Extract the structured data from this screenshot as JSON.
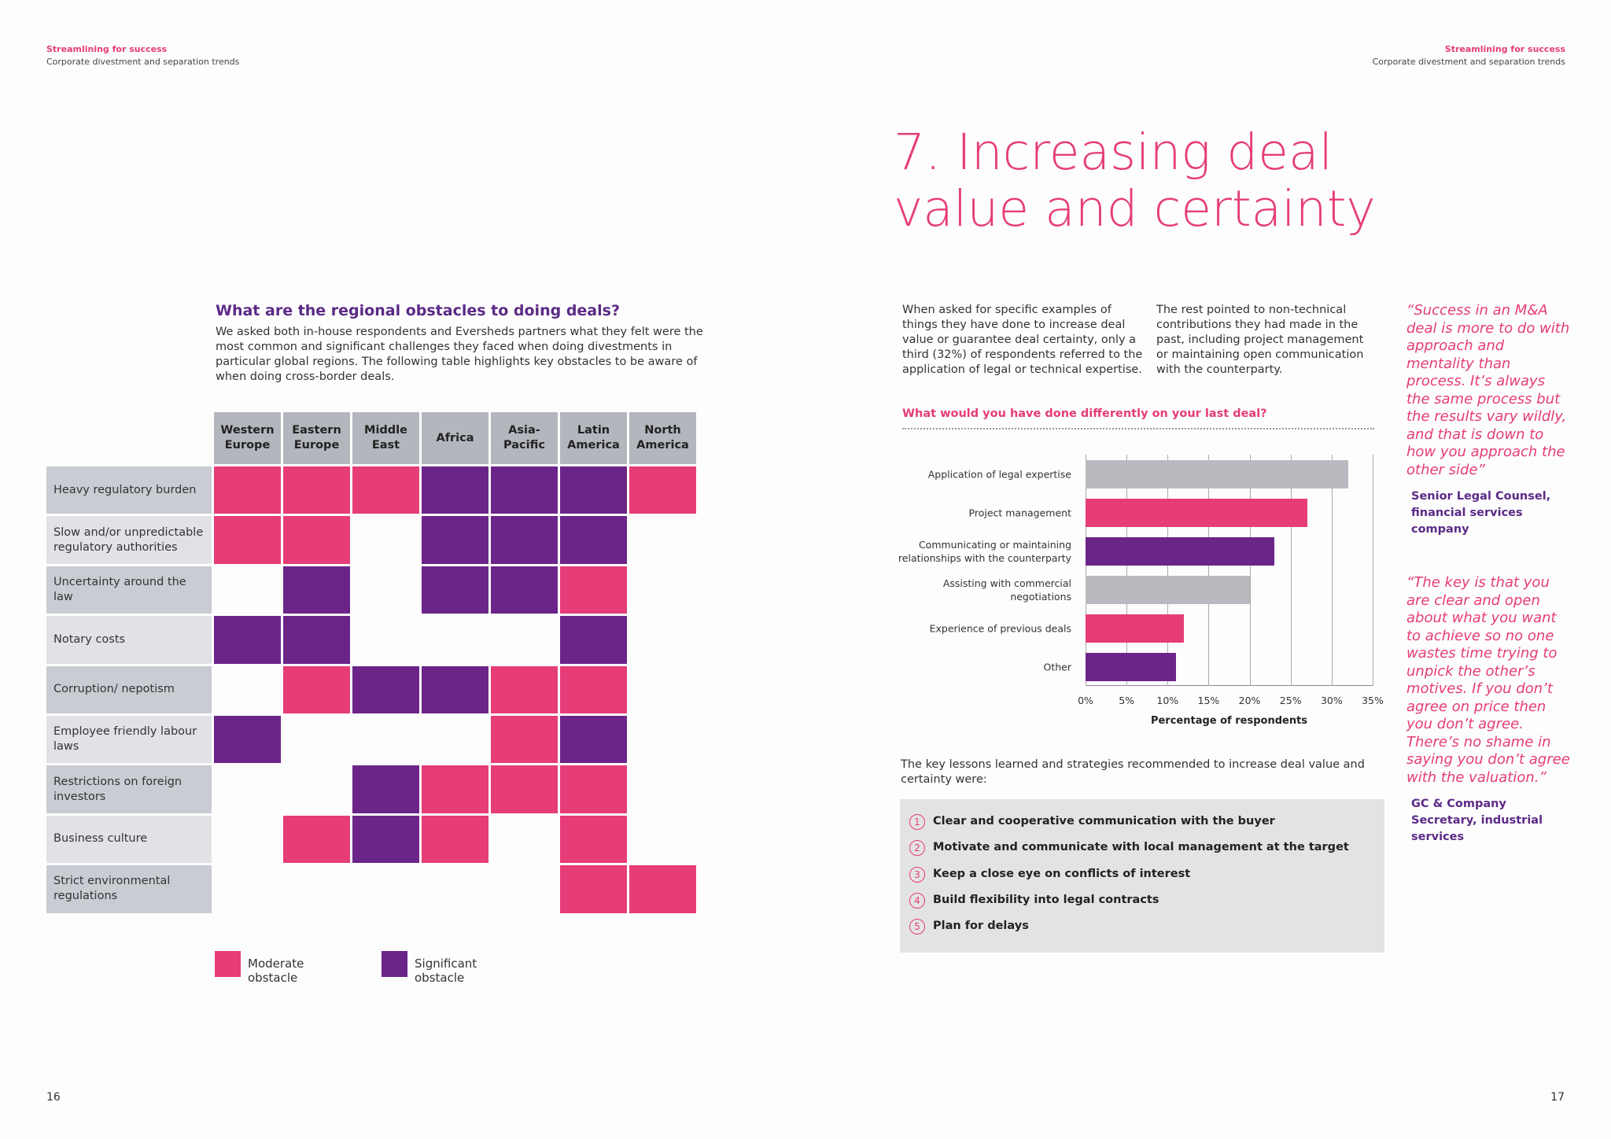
{
  "header_left": {
    "title": "Streamlining for success",
    "subtitle": "Corporate divestment and separation trends"
  },
  "header_right": {
    "title": "Streamlining for success",
    "subtitle": "Corporate divestment and separation trends"
  },
  "page_numbers": [
    "16",
    "17"
  ],
  "obstacles": {
    "heading": "What are the regional obstacles to doing deals?",
    "intro": "We asked both in-house respondents and Eversheds partners what they felt were the most common and significant challenges they faced when doing divestments in particular global regions. The following table highlights key obstacles to be aware of when doing cross-border deals.",
    "columns": [
      "Western Europe",
      "Eastern Europe",
      "Middle East",
      "Africa",
      "Asia-Pacific",
      "Latin America",
      "North America"
    ],
    "legend": [
      {
        "label": "Moderate obstacle",
        "color": "#e63c78"
      },
      {
        "label": "Significant obstacle",
        "color": "#6b2588"
      }
    ],
    "rows": [
      {
        "label": "Heavy regulatory burden",
        "cells": [
          0,
          0,
          0,
          1,
          1,
          1,
          0
        ]
      },
      {
        "label": "Slow and/or unpredictable regulatory authorities",
        "cells": [
          0,
          0,
          null,
          1,
          1,
          1,
          null
        ]
      },
      {
        "label": "Uncertainty around the law",
        "cells": [
          null,
          1,
          null,
          1,
          1,
          0,
          null
        ]
      },
      {
        "label": "Notary costs",
        "cells": [
          1,
          1,
          null,
          null,
          null,
          1,
          null
        ]
      },
      {
        "label": "Corruption/ nepotism",
        "cells": [
          null,
          0,
          1,
          1,
          0,
          0,
          null
        ]
      },
      {
        "label": "Employee friendly labour laws",
        "cells": [
          1,
          null,
          null,
          null,
          0,
          1,
          null
        ]
      },
      {
        "label": "Restrictions on foreign investors",
        "cells": [
          null,
          null,
          1,
          0,
          0,
          0,
          null
        ]
      },
      {
        "label": "Business culture",
        "cells": [
          null,
          0,
          1,
          0,
          null,
          0,
          null
        ]
      },
      {
        "label": "Strict environmental regulations",
        "cells": [
          null,
          null,
          null,
          null,
          null,
          0,
          0
        ]
      }
    ]
  },
  "section_title": "7. Increasing deal value and certainty",
  "paragraphs": [
    "When asked for specific examples of things they have done to increase deal value or guarantee deal certainty, only a third (32%) of respondents referred to the application of legal or technical expertise.",
    "The rest pointed to non-technical contributions they had made in the past, including project management or maintaining open communication with the counterparty."
  ],
  "chart_data": {
    "type": "hbar",
    "title": "What would you have done differently on your last deal?",
    "categories": [
      "Application of legal expertise",
      "Project management",
      "Communicating or maintaining relationships with the counterparty",
      "Assisting with commercial negotiations",
      "Experience of previous deals",
      "Other"
    ],
    "values": [
      32,
      27,
      23,
      20,
      12,
      11
    ],
    "colors": [
      "#b8babf",
      "#e63c78",
      "#6b2588",
      "#b8babf",
      "#e63c78",
      "#6b2588"
    ],
    "xlim": [
      0,
      35
    ],
    "xticks": [
      {
        "value": 0,
        "label": "0%"
      },
      {
        "value": 5,
        "label": "5%"
      },
      {
        "value": 10,
        "label": "10%"
      },
      {
        "value": 15,
        "label": "15%"
      },
      {
        "value": 20,
        "label": "20%"
      },
      {
        "value": 25,
        "label": "25%"
      },
      {
        "value": 30,
        "label": "30%"
      },
      {
        "value": 35,
        "label": "35%"
      }
    ],
    "x_label": "Percentage of respondents",
    "grid": true
  },
  "lessons": {
    "intro": "The key lessons learned and strategies recommended to increase deal value and certainty were:",
    "items": [
      {
        "number": "1",
        "text": "Clear and cooperative communication with the buyer"
      },
      {
        "number": "2",
        "text": "Motivate and communicate with local management at the target"
      },
      {
        "number": "3",
        "text": "Keep a close eye on conflicts of interest"
      },
      {
        "number": "4",
        "text": "Build flexibility into legal contracts"
      },
      {
        "number": "5",
        "text": "Plan for delays"
      }
    ]
  },
  "quotes": [
    {
      "text": "“Success in an M&A deal is more to do with approach and mentality than process. It’s always the same process but the results vary wildly, and that is down to how you approach the other side”",
      "attribution": "Senior Legal Counsel, financial services company"
    },
    {
      "text": "“The key is that you are clear and open about what you want to achieve so no one wastes time trying to unpick the other’s motives. If you don’t agree on price then you don’t agree. There’s no shame in saying you don’t agree with the valuation.”",
      "attribution": "GC & Company Secretary, industrial services"
    }
  ]
}
